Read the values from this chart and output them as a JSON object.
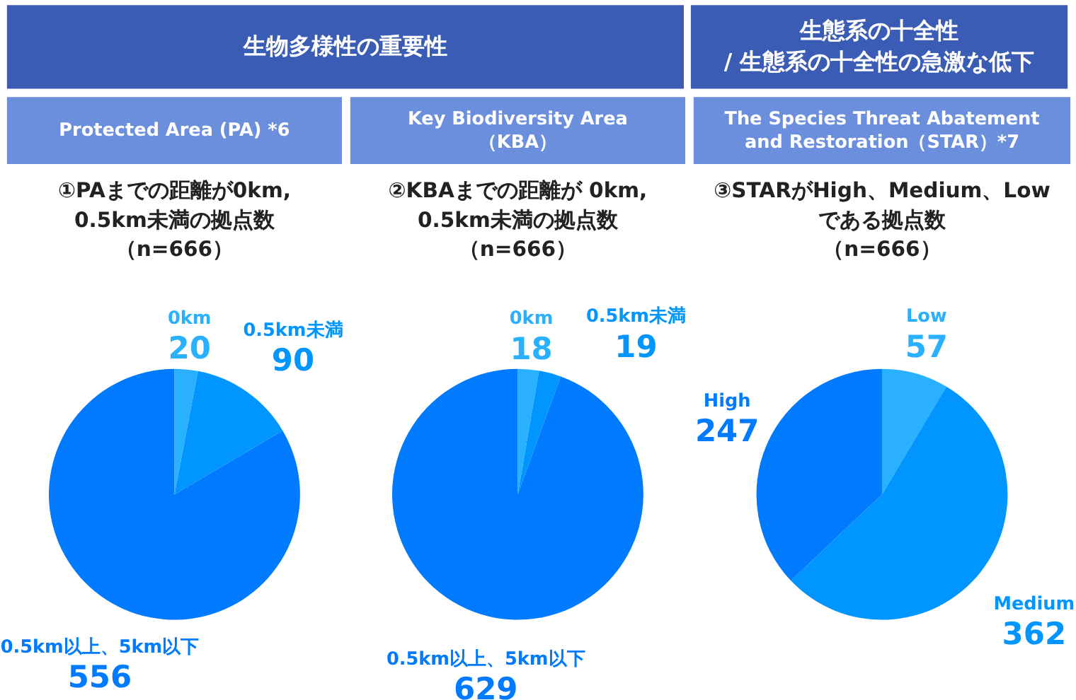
{
  "chart_data": [
    {
      "type": "other",
      "title": "生物多様性の重要性"
    },
    {
      "type": "other",
      "title": "生態系の十全性\n/ 生態系の十全性の急激な低下"
    },
    {
      "type": "pie",
      "title": "Protected Area (PA) *6",
      "subtitle": "①PAまでの距離が0km,\n0.5km未満の拠点数",
      "annotations": [
        "（n=666）"
      ],
      "categories": [
        "0km",
        "0.5km未満",
        "0.5km以上、5km以下"
      ],
      "values": [
        20,
        90,
        556
      ],
      "colors": [
        "#29b0ff",
        "#0095ff",
        "#007bff"
      ],
      "data_labels": true
    },
    {
      "type": "pie",
      "title": "Key Biodiversity Area\n（KBA）",
      "subtitle": "②KBAまでの距離が 0km,\n0.5km未満の拠点数",
      "annotations": [
        "（n=666）"
      ],
      "categories": [
        "0km",
        "0.5km未満",
        "0.5km以上、5km以下"
      ],
      "values": [
        18,
        19,
        629
      ],
      "colors": [
        "#29b0ff",
        "#0095ff",
        "#007bff"
      ],
      "data_labels": true
    },
    {
      "type": "pie",
      "title": "The Species Threat Abatement\nand Restoration（STAR）*7",
      "subtitle": "③STARがHigh、Medium、Low\nである拠点数",
      "annotations": [
        "（n=666）"
      ],
      "categories": [
        "Low",
        "Medium",
        "High"
      ],
      "values": [
        57,
        362,
        247
      ],
      "colors": [
        "#29b0ff",
        "#0095ff",
        "#007bff"
      ],
      "data_labels": true
    }
  ]
}
